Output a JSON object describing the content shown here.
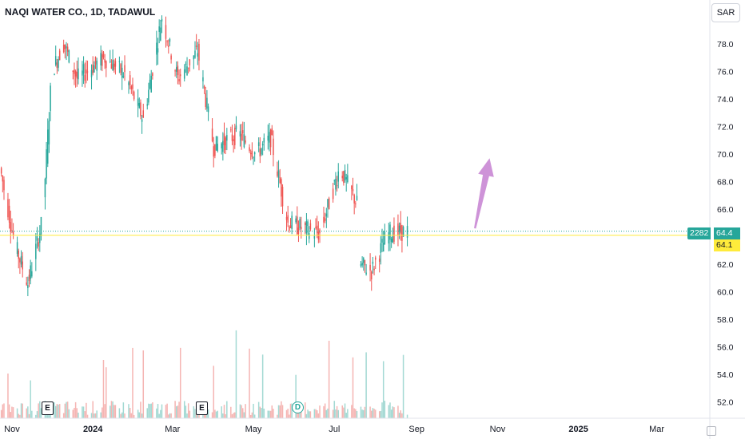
{
  "header": {
    "symbol_title": "NAQI WATER CO., 1D, TADAWUL",
    "currency_button": "SAR"
  },
  "price_tags": {
    "volume": "2282",
    "last": "64.4",
    "reference": "64.1"
  },
  "events": [
    {
      "label": "E",
      "kind": "earnings"
    },
    {
      "label": "E",
      "kind": "earnings"
    },
    {
      "label": "D",
      "kind": "dividend"
    }
  ],
  "colors": {
    "up": "#26a69a",
    "down": "#ef5350",
    "arrow": "#ce93d8",
    "reference_line": "#ffeb3b",
    "last_line": "#26a69a"
  },
  "chart_data": {
    "type": "candlestick",
    "title": "NAQI WATER CO., 1D, TADAWUL",
    "y_axis_ticks": [
      "52.0",
      "54.0",
      "56.0",
      "58.0",
      "60.0",
      "62.0",
      "64.0",
      "66.0",
      "68.0",
      "70.0",
      "72.0",
      "74.0",
      "76.0",
      "78.0"
    ],
    "x_axis_ticks": [
      "Nov",
      "2024",
      "Mar",
      "May",
      "Jul",
      "Sep",
      "Nov",
      "2025",
      "Mar"
    ],
    "ylim": [
      50.8,
      81.2
    ],
    "xlim": [
      "2023-10-23",
      "2025-04-10"
    ],
    "last_price": 64.4,
    "reference_price": 64.1,
    "projection_arrow": {
      "from": [
        "2024-10-15",
        64.6
      ],
      "to": [
        "2024-10-26",
        69.7
      ]
    },
    "segments": [
      {
        "from": "2023-10-24",
        "to": "2023-11-03",
        "open": 69.0,
        "close": 63.5
      },
      {
        "from": "2023-11-04",
        "to": "2023-11-13",
        "open": 63.5,
        "close": 60.6
      },
      {
        "from": "2023-11-14",
        "to": "2023-11-24",
        "open": 60.6,
        "close": 65.2
      },
      {
        "from": "2023-11-25",
        "to": "2023-12-01",
        "open": 65.2,
        "close": 76.0
      },
      {
        "from": "2023-12-02",
        "to": "2023-12-10",
        "open": 76.0,
        "close": 78.0
      },
      {
        "from": "2023-12-11",
        "to": "2023-12-20",
        "open": 78.0,
        "close": 75.5
      },
      {
        "from": "2023-12-21",
        "to": "2024-01-10",
        "open": 75.5,
        "close": 77.0
      },
      {
        "from": "2024-01-11",
        "to": "2024-01-25",
        "open": 77.0,
        "close": 75.8
      },
      {
        "from": "2024-01-26",
        "to": "2024-02-08",
        "open": 75.8,
        "close": 72.5
      },
      {
        "from": "2024-02-09",
        "to": "2024-02-22",
        "open": 72.5,
        "close": 80.0
      },
      {
        "from": "2024-02-23",
        "to": "2024-03-05",
        "open": 80.0,
        "close": 75.5
      },
      {
        "from": "2024-03-06",
        "to": "2024-03-20",
        "open": 75.5,
        "close": 77.5
      },
      {
        "from": "2024-03-21",
        "to": "2024-04-01",
        "open": 77.5,
        "close": 70.5
      },
      {
        "from": "2024-04-02",
        "to": "2024-04-20",
        "open": 70.5,
        "close": 71.5
      },
      {
        "from": "2024-04-21",
        "to": "2024-05-03",
        "open": 71.5,
        "close": 70.0
      },
      {
        "from": "2024-05-04",
        "to": "2024-05-14",
        "open": 70.0,
        "close": 71.2
      },
      {
        "from": "2024-05-15",
        "to": "2024-05-27",
        "open": 71.2,
        "close": 65.0
      },
      {
        "from": "2024-05-28",
        "to": "2024-06-20",
        "open": 65.0,
        "close": 64.2
      },
      {
        "from": "2024-06-21",
        "to": "2024-07-05",
        "open": 64.2,
        "close": 69.0
      },
      {
        "from": "2024-07-06",
        "to": "2024-07-20",
        "open": 69.0,
        "close": 66.0
      },
      {
        "from": "2024-07-21",
        "to": "2024-07-29",
        "open": 62.0,
        "close": 61.5
      },
      {
        "from": "2024-07-30",
        "to": "2024-08-10",
        "open": 61.5,
        "close": 64.2
      },
      {
        "from": "2024-08-11",
        "to": "2024-08-25",
        "open": 64.2,
        "close": 64.4
      }
    ]
  }
}
